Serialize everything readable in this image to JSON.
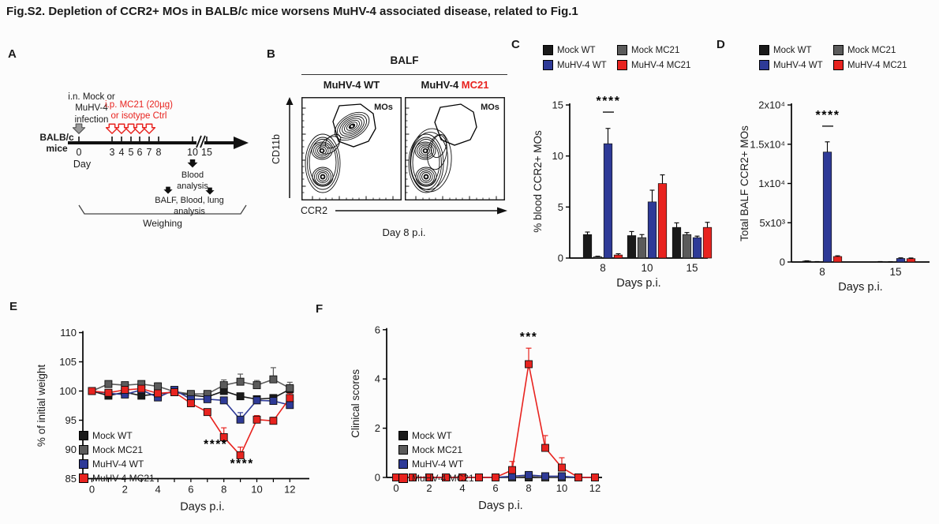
{
  "title": "Fig.S2. Depletion of CCR2+ MOs in BALB/c mice worsens MuHV-4 associated disease, related to Fig.1",
  "panels": {
    "A": "A",
    "B": "B",
    "C": "C",
    "D": "D",
    "E": "E",
    "F": "F"
  },
  "groups": [
    "Mock WT",
    "Mock MC21",
    "MuHV-4 WT",
    "MuHV-4 MC21"
  ],
  "colors": {
    "mock_wt": "#1a1a1a",
    "mock_mc21": "#5b5b5b",
    "muhv4_wt": "#2e3a97",
    "muhv4_mc21": "#e8231f"
  },
  "panelA": {
    "mice_label": "BALB/c\nmice",
    "infection_label": "i.n. Mock or\nMuHV-4\ninfection",
    "treatment_label": "i.p. MC21 (20µg)\nor isotype Ctrl",
    "day_label": "Day",
    "timeline_days": [
      "0",
      "3",
      "4",
      "5",
      "6",
      "7",
      "8",
      "10",
      "15"
    ],
    "blood_label": "Blood\nanalysis",
    "balf_label": "BALF, Blood, lung\nanalysis",
    "weighing_label": "Weighing"
  },
  "panelB": {
    "header": "BALF",
    "plot_wt_title": "MuHV-4 WT",
    "plot_mc21_title_prefix": "MuHV-4 ",
    "plot_mc21_title_highlight": "MC21",
    "gate_label": "MOs",
    "x_axis_label": "CCR2",
    "y_axis_label": "CD11b",
    "caption": "Day 8 p.i."
  },
  "chart_data": [
    {
      "id": "C",
      "type": "bar",
      "ylabel": "% blood CCR2+ MOs",
      "xlabel": "Days p.i.",
      "categories": [
        "8",
        "10",
        "15"
      ],
      "ylim": [
        0,
        15
      ],
      "yticks": [
        0,
        5,
        10,
        15
      ],
      "grid": false,
      "legend_position": "top",
      "series": [
        {
          "name": "Mock WT",
          "color": "#1a1a1a",
          "values": [
            2.3,
            2.2,
            3.0
          ],
          "errors": [
            0.25,
            0.4,
            0.45
          ]
        },
        {
          "name": "Mock MC21",
          "color": "#5b5b5b",
          "values": [
            0.12,
            2.0,
            2.3
          ],
          "errors": [
            0.06,
            0.3,
            0.2
          ]
        },
        {
          "name": "MuHV-4 WT",
          "color": "#2e3a97",
          "values": [
            11.2,
            5.5,
            2.0
          ],
          "errors": [
            1.5,
            1.15,
            0.15
          ]
        },
        {
          "name": "MuHV-4 MC21",
          "color": "#e8231f",
          "values": [
            0.3,
            7.3,
            3.0
          ],
          "errors": [
            0.12,
            0.85,
            0.5
          ]
        }
      ],
      "significance": {
        "group": 0,
        "text": "****",
        "star_y": 15.3,
        "line_y": 14.3
      }
    },
    {
      "id": "D",
      "type": "bar",
      "ylabel": "Total BALF CCR2+ MOs",
      "xlabel": "Days p.i.",
      "categories": [
        "8",
        "15"
      ],
      "ylim": [
        0,
        20000
      ],
      "yticks": [
        0,
        5000,
        10000,
        15000,
        20000
      ],
      "ytick_labels": [
        "0",
        "5x10³",
        "1x10⁴",
        "1.5x10⁴",
        "2x10⁴"
      ],
      "grid": false,
      "legend_position": "top",
      "series": [
        {
          "name": "Mock WT",
          "color": "#1a1a1a",
          "values": [
            120,
            40
          ],
          "errors": [
            30,
            15
          ]
        },
        {
          "name": "Mock MC21",
          "color": "#5b5b5b",
          "values": [
            40,
            25
          ],
          "errors": [
            15,
            10
          ]
        },
        {
          "name": "MuHV-4 WT",
          "color": "#2e3a97",
          "values": [
            14000,
            450
          ],
          "errors": [
            1300,
            80
          ]
        },
        {
          "name": "MuHV-4 MC21",
          "color": "#e8231f",
          "values": [
            700,
            430
          ],
          "errors": [
            90,
            80
          ]
        }
      ],
      "significance": {
        "group": 0,
        "text": "****",
        "star_y": 18600,
        "line_y": 17300
      }
    },
    {
      "id": "E",
      "type": "line",
      "ylabel": "% of initial weight",
      "xlabel": "Days p.i.",
      "x": [
        0,
        1,
        2,
        3,
        4,
        5,
        6,
        7,
        8,
        9,
        10,
        11,
        12
      ],
      "xtick_labels": [
        "0",
        "2",
        "4",
        "6",
        "8",
        "10",
        "12"
      ],
      "ylim": [
        85,
        110
      ],
      "yticks": [
        85,
        90,
        95,
        100,
        105,
        110
      ],
      "grid": false,
      "legend_position": "inside-bottom-left",
      "series": [
        {
          "name": "Mock WT",
          "color": "#1a1a1a",
          "values": [
            100,
            99.2,
            99.8,
            99.2,
            99.5,
            99.8,
            99.3,
            99,
            100,
            99.1,
            98.6,
            98.8,
            100.3
          ],
          "errors": [
            0.3,
            0.5,
            0.5,
            0.6,
            0.5,
            0.4,
            0.4,
            0.4,
            0.5,
            0.5,
            0.5,
            0.5,
            0.6
          ]
        },
        {
          "name": "Mock MC21",
          "color": "#5b5b5b",
          "values": [
            100,
            101.2,
            101,
            101.2,
            100.8,
            99.9,
            99.5,
            99.5,
            101,
            101.6,
            101,
            102,
            100.5
          ],
          "errors": [
            0.3,
            0.5,
            0.5,
            0.5,
            0.6,
            0.4,
            0.4,
            0.4,
            0.9,
            1.3,
            0.8,
            2,
            1
          ]
        },
        {
          "name": "MuHV-4 WT",
          "color": "#2e3a97",
          "values": [
            100,
            99.6,
            99.4,
            100.2,
            98.9,
            100.2,
            98.6,
            98.6,
            98.4,
            95.1,
            98.4,
            98.3,
            97.6
          ],
          "errors": [
            0.3,
            0.4,
            0.4,
            0.5,
            0.4,
            0.4,
            0.4,
            0.4,
            0.5,
            1.2,
            0.5,
            0.6,
            0.7
          ]
        },
        {
          "name": "MuHV-4 MC21",
          "color": "#e8231f",
          "values": [
            100,
            99.7,
            100.2,
            100.4,
            99.6,
            99.8,
            97.9,
            96.4,
            92.1,
            89,
            95.1,
            94.9,
            98.8
          ],
          "errors": [
            0.3,
            0.4,
            0.4,
            0.5,
            0.5,
            0.4,
            0.5,
            0.5,
            1.6,
            1.4,
            0.7,
            0.6,
            0.8
          ]
        }
      ],
      "significance": [
        {
          "x": 7.5,
          "y": 90.2,
          "text": "****"
        },
        {
          "x": 9.1,
          "y": 86.9,
          "text": "****"
        }
      ]
    },
    {
      "id": "F",
      "type": "line",
      "ylabel": "Clinical scores",
      "xlabel": "Days p.i.",
      "x": [
        0,
        1,
        2,
        3,
        4,
        5,
        6,
        7,
        8,
        9,
        10,
        11,
        12
      ],
      "xtick_labels": [
        "0",
        "2",
        "4",
        "6",
        "8",
        "10",
        "12"
      ],
      "ylim": [
        0,
        6
      ],
      "yticks": [
        0,
        2,
        4,
        6
      ],
      "grid": false,
      "legend_position": "inside-bottom-left",
      "series": [
        {
          "name": "Mock WT",
          "color": "#1a1a1a",
          "values": [
            0,
            0,
            0,
            0,
            0,
            0,
            0,
            0,
            0,
            0,
            0,
            0,
            0
          ],
          "errors": [
            0,
            0,
            0,
            0,
            0,
            0,
            0,
            0,
            0,
            0,
            0,
            0,
            0
          ]
        },
        {
          "name": "Mock MC21",
          "color": "#5b5b5b",
          "values": [
            0,
            0,
            0,
            0,
            0,
            0,
            0,
            0,
            0.05,
            0,
            0,
            0,
            0
          ],
          "errors": [
            0,
            0,
            0,
            0,
            0,
            0,
            0,
            0,
            0,
            0,
            0,
            0,
            0
          ]
        },
        {
          "name": "MuHV-4 WT",
          "color": "#2e3a97",
          "values": [
            0,
            0,
            0,
            0,
            0,
            0,
            0,
            0.05,
            0.1,
            0.05,
            0.05,
            0,
            0
          ],
          "errors": [
            0,
            0,
            0,
            0,
            0,
            0,
            0,
            0,
            0.1,
            0,
            0,
            0,
            0
          ]
        },
        {
          "name": "MuHV-4 MC21",
          "color": "#e8231f",
          "values": [
            0,
            0,
            0,
            0,
            0,
            0,
            0,
            0.3,
            4.6,
            1.2,
            0.4,
            0,
            0
          ],
          "errors": [
            0,
            0,
            0,
            0,
            0,
            0,
            0,
            0.35,
            0.65,
            0.5,
            0.4,
            0,
            0
          ]
        }
      ],
      "significance": [
        {
          "x": 8,
          "y": 5.55,
          "text": "***"
        }
      ]
    }
  ]
}
